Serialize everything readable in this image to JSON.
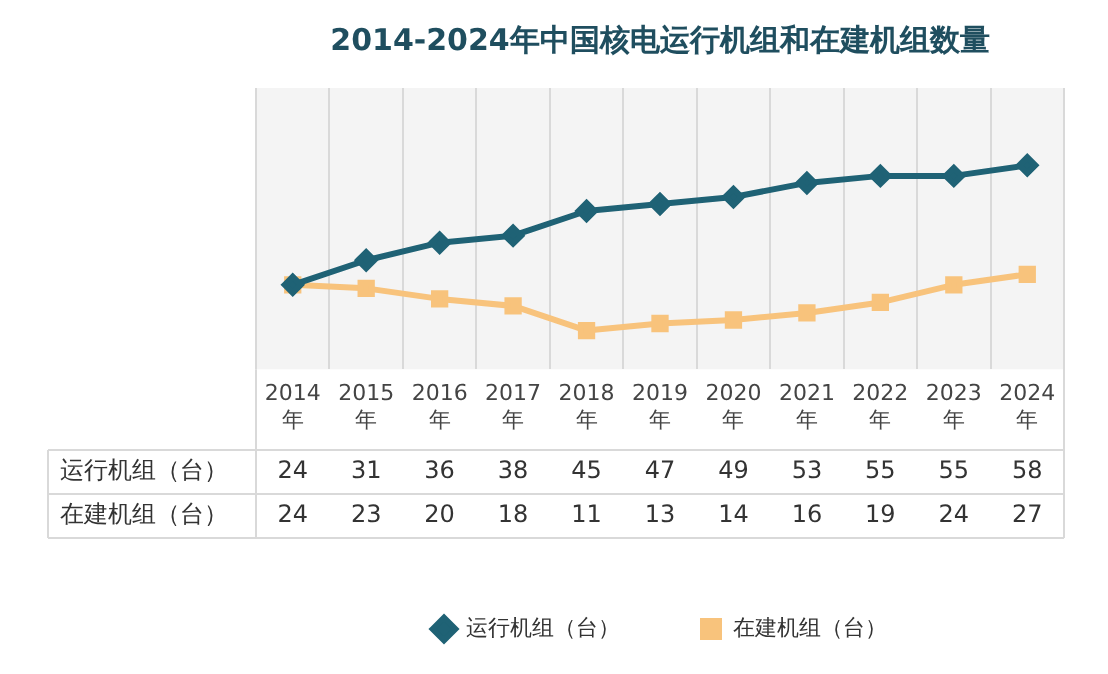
{
  "chart_data": {
    "type": "line",
    "title": "2014-2024年中国核电运行机组和在建机组数量",
    "categories": [
      "2014年",
      "2015年",
      "2016年",
      "2017年",
      "2018年",
      "2019年",
      "2020年",
      "2021年",
      "2022年",
      "2023年",
      "2024年"
    ],
    "series": [
      {
        "name": "运行机组（台）",
        "color": "#1f6275",
        "marker": "diamond",
        "values": [
          24,
          31,
          36,
          38,
          45,
          47,
          49,
          53,
          55,
          55,
          58
        ]
      },
      {
        "name": "在建机组（台）",
        "color": "#f8c37c",
        "marker": "square",
        "values": [
          24,
          23,
          20,
          18,
          11,
          13,
          14,
          16,
          19,
          24,
          27
        ]
      }
    ],
    "ylim": [
      0,
      80
    ],
    "tick_labels": "x",
    "data_labels": true,
    "grid": "x",
    "legend": "bottom"
  }
}
